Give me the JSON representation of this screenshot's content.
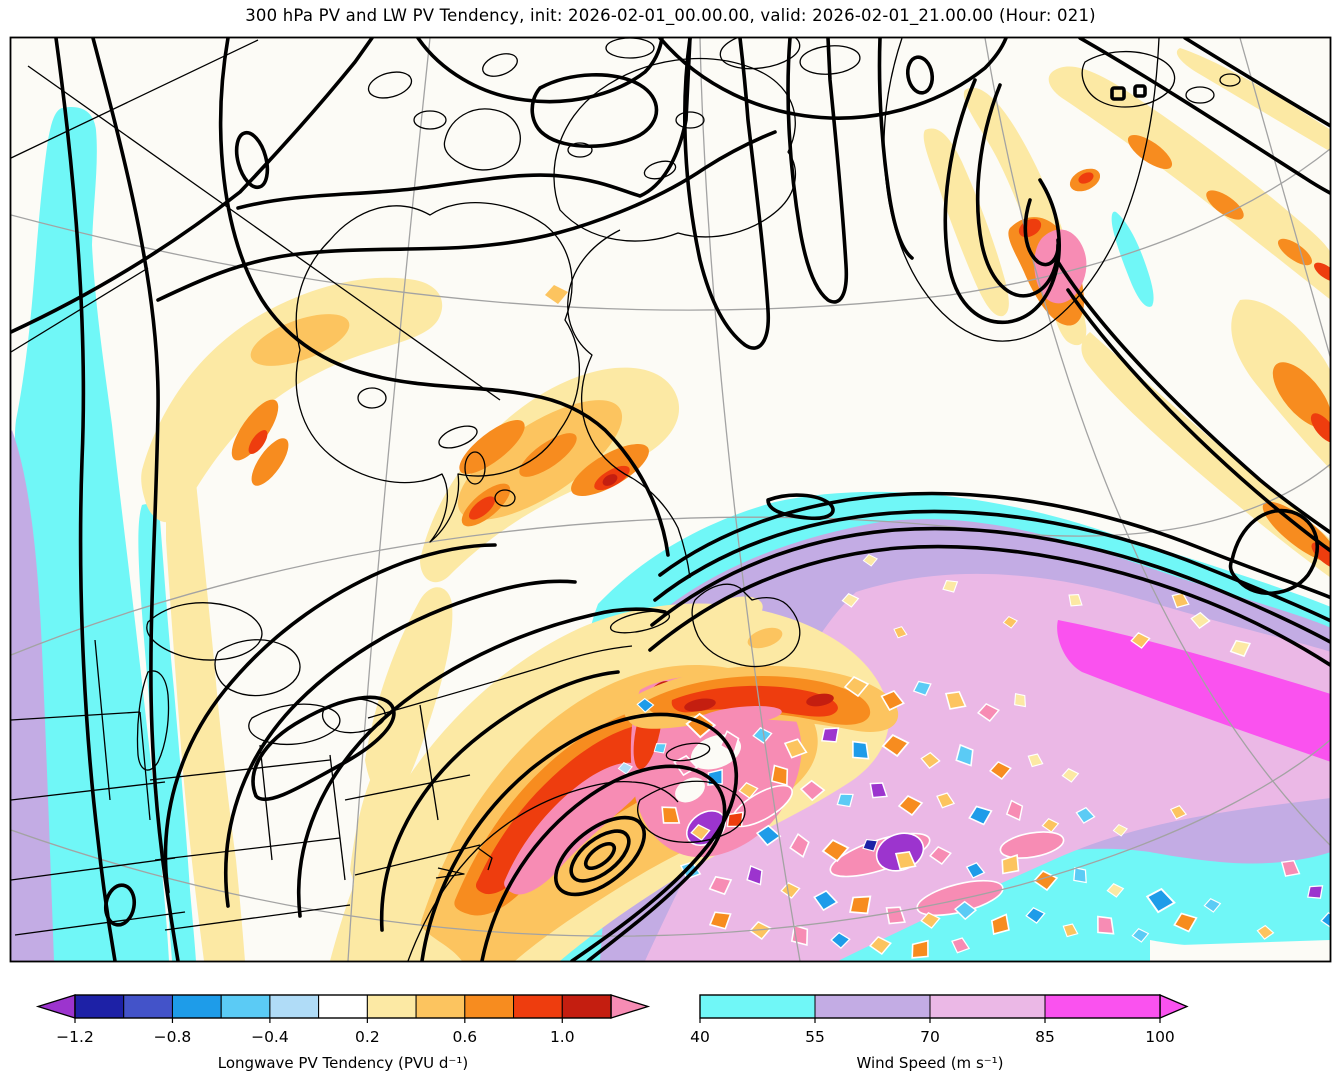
{
  "chart_data": {
    "type": "heatmap",
    "title": "300 hPa PV and LW PV Tendency, init: 2026-02-01_00.00.00, valid: 2026-02-01_21.00.00 (Hour: 021)",
    "level": "300 hPa",
    "init_time": "2026-02-01_00.00.00",
    "valid_time": "2026-02-01_21.00.00",
    "forecast_hour": "021",
    "projection": "polar stereographic style map of North America and the North Atlantic",
    "overlays": [
      {
        "name": "pv-contours",
        "style": "thick black contour lines",
        "variable": "300 hPa potential vorticity"
      },
      {
        "name": "coastlines-and-borders",
        "style": "thin black lines",
        "variable": "coastlines, lakes, state and province borders"
      },
      {
        "name": "graticule",
        "style": "thin gray arcs",
        "variable": "latitude/longitude lines"
      }
    ],
    "colorbars": [
      {
        "id": "lw_pv_tendency",
        "label": "Longwave PV Tendency (PVU d⁻¹)",
        "ticks": [
          "−1.2",
          "−0.8",
          "−0.4",
          "0.2",
          "0.6",
          "1.0"
        ],
        "tick_values": [
          -1.2,
          -0.8,
          -0.4,
          0.2,
          0.6,
          1.0
        ],
        "boundaries": [
          -1.2,
          -1.0,
          -0.8,
          -0.6,
          -0.4,
          -0.2,
          0.2,
          0.4,
          0.6,
          0.8,
          1.0,
          1.2
        ],
        "colors": [
          "#1D21A6",
          "#4353C9",
          "#1E9CE9",
          "#5BCBF5",
          "#B0DCF7",
          "#FFFFFF",
          "#FCE9A4",
          "#FCC45F",
          "#F78C1F",
          "#EE3D0E",
          "#C41E10"
        ],
        "under_color": "#9C34CE",
        "over_color": "#F78CB4",
        "extend": "both"
      },
      {
        "id": "wind_speed",
        "label": "Wind Speed (m s⁻¹)",
        "ticks": [
          "40",
          "55",
          "70",
          "85",
          "100"
        ],
        "tick_values": [
          40,
          55,
          70,
          85,
          100
        ],
        "boundaries": [
          40,
          55,
          70,
          85,
          100
        ],
        "colors": [
          "#70F7F7",
          "#C3ACE4",
          "#EBB8E6",
          "#FA52EF"
        ],
        "over_color": "#FA52EF",
        "extend": "max"
      }
    ],
    "features": [
      "cyan-to-magenta wind speed jet swath across the lower-right North Atlantic, 40 to 100+ m/s",
      "narrow cyan/lavender wind band along the far left (west coast trough)",
      "strong positive LW PV tendency (orange/red/pink > 1.2 PVU/d) storm complex near the Gulf of Maine / Nova Scotia with nested closed PV contours",
      "noisy positive/negative PV tendency dipoles over the western Atlantic jet region",
      "hooked vortex with orange/red/pink tendency core near Iceland",
      "yellow tendency bands over Quebec and along the northeast Atlantic ridge"
    ]
  }
}
